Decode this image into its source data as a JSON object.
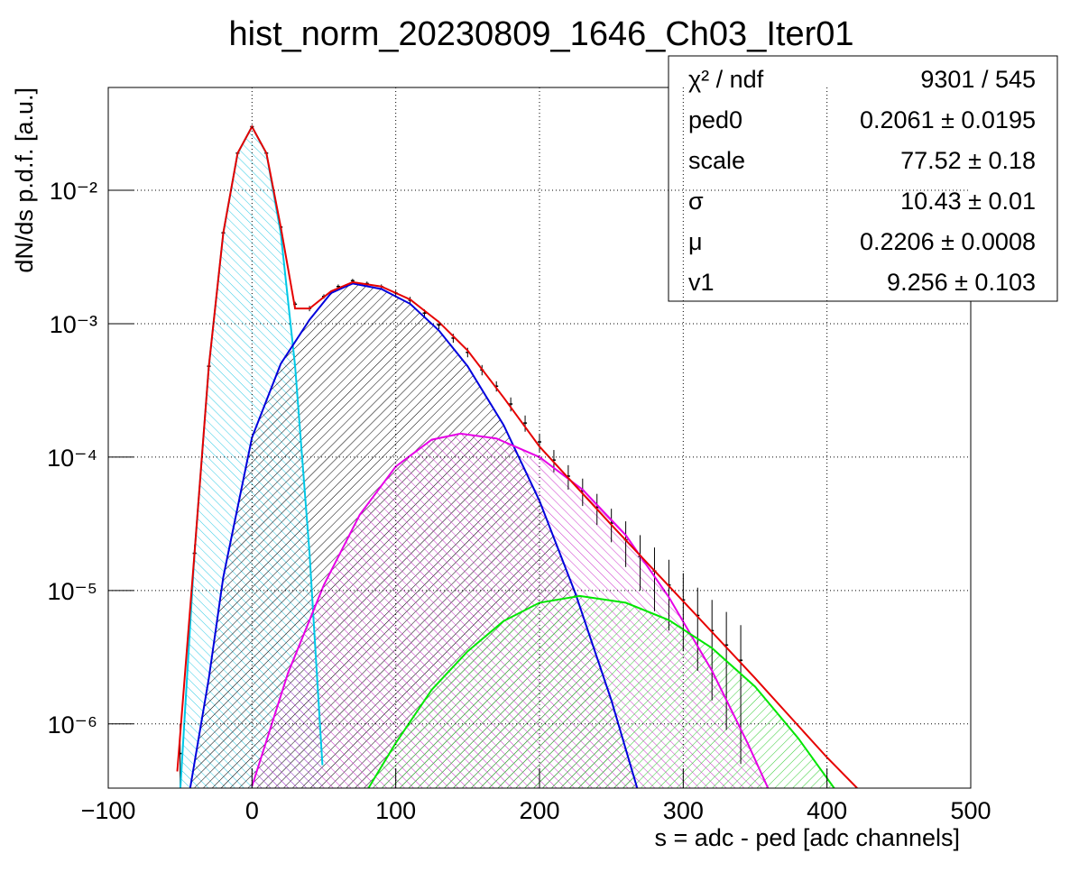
{
  "chart_data": {
    "type": "line",
    "title": "hist_norm_20230809_1646_Ch03_Iter01",
    "x_label": "s = adc - ped [adc channels]",
    "y_label": "dN/ds p.d.f. [a.u.]",
    "xlim": [
      -100,
      500
    ],
    "xticks": [
      {
        "value": -100,
        "label": "−100"
      },
      0,
      100,
      200,
      300,
      400,
      500
    ],
    "ylim": [
      3.3e-07,
      0.059
    ],
    "yticks": [
      {
        "value": 0.01,
        "label": "10⁻²"
      },
      {
        "value": 0.001,
        "label": "10⁻³"
      },
      {
        "value": 0.0001,
        "label": "10⁻⁴"
      },
      {
        "value": 1e-05,
        "label": "10⁻⁵"
      },
      {
        "value": 1e-06,
        "label": "10⁻⁶"
      }
    ],
    "ylog": true,
    "grid": true,
    "data_points": {
      "color": "#000000",
      "x": [
        -50,
        -40,
        -30,
        -20,
        -10,
        0,
        10,
        20,
        30,
        40,
        50,
        60,
        70,
        80,
        90,
        100,
        110,
        120,
        130,
        140,
        150,
        160,
        170,
        180,
        190,
        200,
        210,
        220,
        230,
        240,
        250,
        260,
        270,
        280,
        290,
        300,
        310,
        320,
        330,
        340
      ],
      "values": [
        6e-07,
        1.9e-05,
        0.00048,
        0.0048,
        0.019,
        0.03,
        0.019,
        0.0053,
        0.0014,
        0.0013,
        0.0016,
        0.0019,
        0.0021,
        0.002,
        0.0019,
        0.0017,
        0.0015,
        0.0012,
        0.00098,
        0.00078,
        0.00061,
        0.00045,
        0.00034,
        0.00025,
        0.00018,
        0.00013,
        9.5e-05,
        7.2e-05,
        5.6e-05,
        4.2e-05,
        3.2e-05,
        2.4e-05,
        1.8e-05,
        1.4e-05,
        1.1e-05,
        8.5e-06,
        6.5e-06,
        5e-06,
        3.9e-06,
        3e-06
      ],
      "errors": [
        4e-07,
        3e-06,
        2e-05,
        0.0001,
        0.0003,
        0.0004,
        0.0003,
        0.00015,
        6e-05,
        6e-05,
        6e-05,
        7e-05,
        7e-05,
        7e-05,
        7e-05,
        7e-05,
        9e-05,
        8e-05,
        7e-05,
        6e-05,
        5e-05,
        4e-05,
        3e-05,
        3e-05,
        2.5e-05,
        2e-05,
        1.8e-05,
        1.5e-05,
        1.3e-05,
        1.1e-05,
        9e-06,
        9e-06,
        8e-06,
        7e-06,
        6e-06,
        5e-06,
        4e-06,
        3.5e-06,
        3e-06,
        2.5e-06
      ]
    },
    "curves": [
      {
        "color": "#00c8e6",
        "hatch": "#33cce6",
        "x": [
          -50,
          -40,
          -30,
          -20,
          -10,
          0,
          10,
          20,
          30,
          40,
          49
        ],
        "values": [
          3.1e-07,
          1.9e-05,
          0.00048,
          0.00477,
          0.0189,
          0.03,
          0.0189,
          0.00477,
          0.00048,
          1.9e-05,
          4.9e-07
        ]
      },
      {
        "color": "#0000dd",
        "hatch": "#000000",
        "x": [
          -43,
          -30,
          -20,
          0,
          20,
          40,
          55,
          70,
          90,
          110,
          130,
          150,
          175,
          200,
          225,
          250,
          268
        ],
        "values": [
          3.3e-07,
          2.2e-06,
          1.26e-05,
          0.00014,
          0.0005,
          0.00107,
          0.0017,
          0.002,
          0.00182,
          0.00141,
          0.00089,
          0.00048,
          0.000174,
          4.7e-05,
          9.5e-06,
          1.5e-06,
          3.3e-07
        ]
      },
      {
        "color": "#e600e6",
        "hatch": "#cc33cc",
        "x": [
          0,
          25,
          50,
          75,
          100,
          125,
          145,
          170,
          200,
          230,
          260,
          290,
          320,
          345,
          359
        ],
        "values": [
          3.4e-07,
          2.4e-06,
          1.1e-05,
          3.7e-05,
          8.5e-05,
          0.000135,
          0.00015,
          0.000138,
          0.0001,
          5.7e-05,
          2.6e-05,
          8.9e-06,
          2.5e-06,
          7.1e-07,
          3.3e-07
        ]
      },
      {
        "color": "#00e600",
        "hatch": "#33cc33",
        "x": [
          81,
          100,
          125,
          150,
          175,
          200,
          228,
          260,
          290,
          320,
          350,
          380,
          405
        ],
        "values": [
          3.3e-07,
          7.2e-07,
          1.8e-06,
          3.5e-06,
          5.9e-06,
          8.1e-06,
          9.1e-06,
          8.1e-06,
          6e-06,
          3.7e-06,
          1.9e-06,
          7.8e-07,
          3.3e-07
        ]
      },
      {
        "color": "#e60000",
        "x": [
          -52,
          -40,
          -30,
          -20,
          -10,
          0,
          10,
          20,
          30,
          40,
          55,
          70,
          90,
          110,
          130,
          150,
          175,
          200,
          225,
          250,
          300,
          350,
          400,
          421
        ],
        "values": [
          4.4e-07,
          1.9e-05,
          0.00048,
          0.0048,
          0.019,
          0.03,
          0.019,
          0.0053,
          0.0013,
          0.0013,
          0.00175,
          0.00205,
          0.0019,
          0.00152,
          0.00103,
          0.00063,
          0.00028,
          0.00012,
          6.1e-05,
          3.1e-05,
          8.3e-06,
          2.2e-06,
          5.6e-07,
          3.3e-07
        ]
      }
    ],
    "stats": [
      {
        "label": "χ² / ndf",
        "value": "9301 / 545"
      },
      {
        "label": "ped0",
        "value": "0.2061 ± 0.0195"
      },
      {
        "label": "scale",
        "value": "77.52 ± 0.18"
      },
      {
        "label": "σ",
        "value": "10.43 ± 0.01"
      },
      {
        "label": "μ",
        "value": "0.2206 ± 0.0008"
      },
      {
        "label": "v1",
        "value": "9.256 ± 0.103"
      }
    ]
  }
}
